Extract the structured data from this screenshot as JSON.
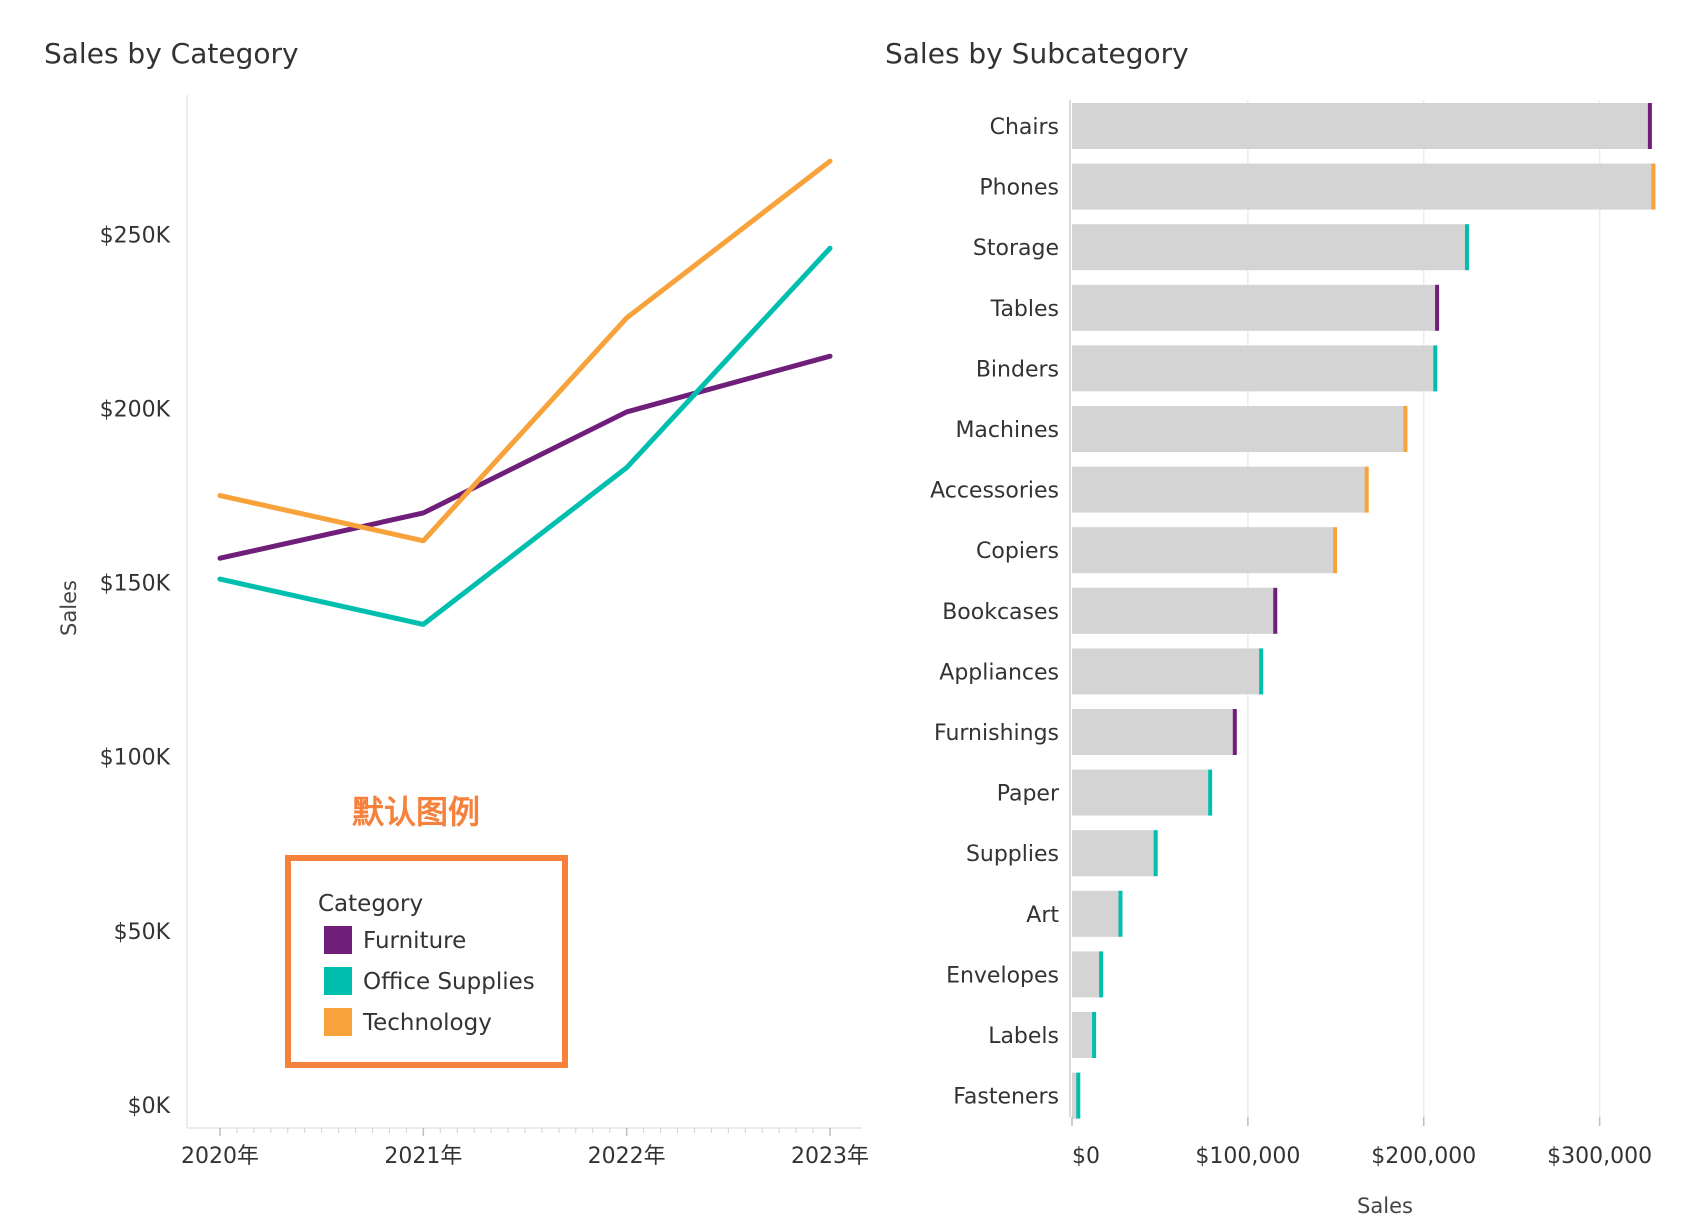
{
  "chart_data": [
    {
      "type": "line",
      "title": "Sales by Category",
      "ylabel": "Sales",
      "xlabel": "",
      "x": [
        "2020年",
        "2021年",
        "2022年",
        "2023年"
      ],
      "ylim": [
        0,
        290000
      ],
      "yticks": [
        0,
        50000,
        100000,
        150000,
        200000,
        250000
      ],
      "ytick_labels": [
        "$0K",
        "$50K",
        "$100K",
        "$150K",
        "$200K",
        "$250K"
      ],
      "series": [
        {
          "name": "Furniture",
          "color": "#6f1f7a",
          "values": [
            157000,
            170000,
            199000,
            215000
          ]
        },
        {
          "name": "Office Supplies",
          "color": "#00bfae",
          "values": [
            151000,
            138000,
            183000,
            246000
          ]
        },
        {
          "name": "Technology",
          "color": "#f7a23b",
          "values": [
            175000,
            162000,
            226000,
            271000
          ]
        }
      ],
      "legend": {
        "title": "Category",
        "position": "bottom-inside",
        "entries": [
          {
            "label": "Furniture",
            "color": "#6f1f7a"
          },
          {
            "label": "Office Supplies",
            "color": "#00bfae"
          },
          {
            "label": "Technology",
            "color": "#f7a23b"
          }
        ]
      },
      "annotation": {
        "text": "默认图例",
        "color": "#f5813d"
      }
    },
    {
      "type": "bar",
      "orientation": "horizontal",
      "title": "Sales by Subcategory",
      "xlabel": "Sales",
      "ylabel": "",
      "xlim": [
        0,
        340000
      ],
      "xticks": [
        0,
        100000,
        200000,
        300000
      ],
      "xtick_labels": [
        "$0",
        "$100,000",
        "$200,000",
        "$300,000"
      ],
      "bar_color": "#d4d4d4",
      "categories": [
        "Chairs",
        "Phones",
        "Storage",
        "Tables",
        "Binders",
        "Machines",
        "Accessories",
        "Copiers",
        "Bookcases",
        "Appliances",
        "Furnishings",
        "Paper",
        "Supplies",
        "Art",
        "Envelopes",
        "Labels",
        "Fasteners"
      ],
      "values": [
        328000,
        330000,
        224000,
        207000,
        206000,
        189000,
        167000,
        149000,
        115000,
        107000,
        92000,
        78000,
        47000,
        27000,
        16000,
        12000,
        3000
      ],
      "category_group": [
        "Furniture",
        "Technology",
        "Office Supplies",
        "Furniture",
        "Office Supplies",
        "Technology",
        "Technology",
        "Technology",
        "Furniture",
        "Office Supplies",
        "Furniture",
        "Office Supplies",
        "Office Supplies",
        "Office Supplies",
        "Office Supplies",
        "Office Supplies",
        "Office Supplies"
      ],
      "group_colors": {
        "Furniture": "#6f1f7a",
        "Office Supplies": "#00bfae",
        "Technology": "#f7a23b"
      }
    }
  ]
}
